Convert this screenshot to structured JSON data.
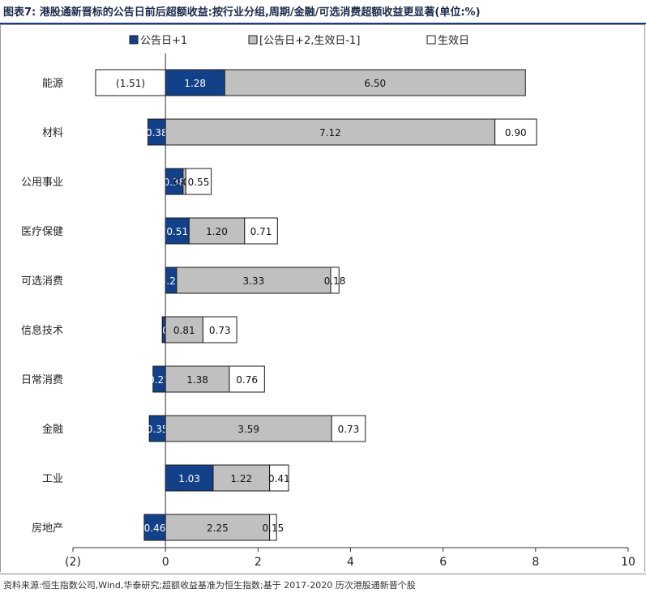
{
  "header": {
    "title": "图表7:  港股通新晋标的公告日前后超额收益:按行业分组,周期/金融/可选消费超额收益更显著(单位:%)"
  },
  "footer": {
    "source": "资料来源:恒生指数公司,Wind,华泰研究;超额收益基准为恒生指数;基于 2017-2020 历次港股通新晋个股"
  },
  "colors": {
    "announce": "#12418a",
    "window": "#c0c0c0",
    "effective": "#ffffff",
    "border": "#1a1a1a",
    "frame": "#999999"
  },
  "chart_data": {
    "type": "bar",
    "orientation": "horizontal",
    "stacked": true,
    "categories": [
      "能源",
      "材料",
      "公用事业",
      "医疗保健",
      "可选消费",
      "信息技术",
      "日常消费",
      "金融",
      "工业",
      "房地产"
    ],
    "series": [
      {
        "name": "公告日+1",
        "values": [
          1.28,
          -0.38,
          0.38,
          0.51,
          0.24,
          -0.07,
          -0.27,
          -0.35,
          1.03,
          -0.46
        ],
        "labels": [
          "1.28",
          "(0.38)",
          "0.38",
          "0.51",
          "0.24",
          "(0.07)",
          "(0.27)",
          "(0.35)",
          "1.03",
          "(0.46)"
        ]
      },
      {
        "name": "[公告日+2,生效日-1]",
        "values": [
          6.5,
          7.12,
          0.06,
          1.2,
          3.33,
          0.81,
          1.38,
          3.59,
          1.22,
          2.25
        ],
        "labels": [
          "6.50",
          "7.12",
          "0.06",
          "1.20",
          "3.33",
          "0.81",
          "1.38",
          "3.59",
          "1.22",
          "2.25"
        ]
      },
      {
        "name": "生效日",
        "values": [
          -1.51,
          0.9,
          0.55,
          0.71,
          0.18,
          0.73,
          0.76,
          0.73,
          0.41,
          0.15
        ],
        "labels": [
          "(1.51)",
          "0.90",
          "0.55",
          "0.71",
          "0.18",
          "0.73",
          "0.76",
          "0.73",
          "0.41",
          "0.15"
        ]
      }
    ],
    "xlim": [
      -2,
      10
    ],
    "xticks": [
      -2,
      0,
      2,
      4,
      6,
      8,
      10
    ],
    "xtick_labels": [
      "(2)",
      "0",
      "2",
      "4",
      "6",
      "8",
      "10"
    ],
    "legend_position": "top",
    "grid": false
  }
}
